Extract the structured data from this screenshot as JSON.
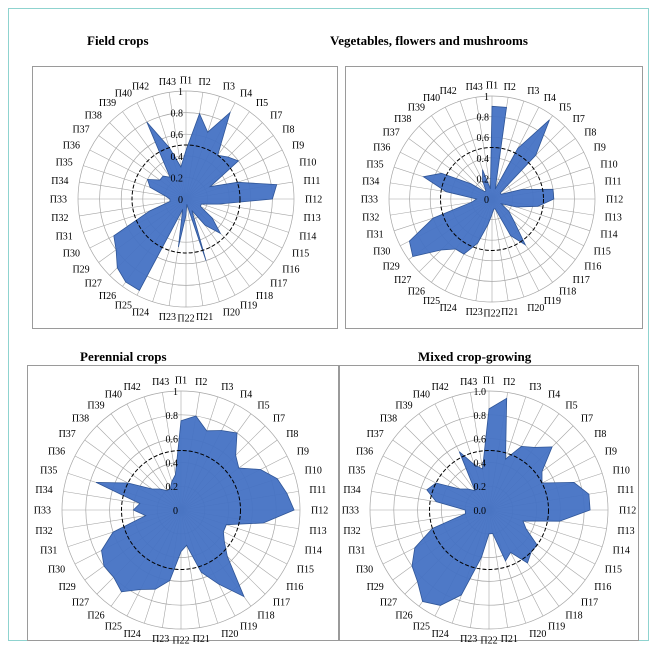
{
  "chart_data": [
    {
      "type": "radar",
      "title": "Field crops",
      "categories": [
        "П1",
        "П2",
        "П3",
        "П4",
        "П5",
        "П7",
        "П8",
        "П9",
        "П10",
        "П11",
        "П12",
        "П13",
        "П14",
        "П15",
        "П16",
        "П17",
        "П18",
        "П19",
        "П20",
        "П21",
        "П22",
        "П23",
        "П24",
        "П25",
        "П26",
        "П27",
        "П29",
        "П30",
        "П31",
        "П32",
        "П33",
        "П34",
        "П35",
        "П36",
        "П37",
        "П38",
        "П39",
        "П40",
        "П42",
        "П43"
      ],
      "radial_ticks": [
        "0",
        "0.2",
        "0.4",
        "0.6",
        "0.8",
        "1"
      ],
      "rlim": [
        0,
        1
      ],
      "threshold": 0.5,
      "values": [
        0.45,
        0.8,
        0.65,
        0.9,
        0.5,
        0.55,
        0.6,
        0.25,
        0.5,
        0.85,
        0.8,
        0.3,
        0.15,
        0.15,
        0.3,
        0.45,
        0.3,
        0.12,
        0.6,
        0.05,
        0.15,
        0.45,
        0.1,
        0.95,
        0.95,
        0.9,
        0.8,
        0.75,
        0.35,
        0.15,
        0.15,
        0.2,
        0.35,
        0.4,
        0.3,
        0.3,
        0.25,
        0.8,
        0.5,
        0.3
      ]
    },
    {
      "type": "radar",
      "title": "Vegetables, flowers and mushrooms",
      "categories": [
        "П1",
        "П2",
        "П3",
        "П4",
        "П5",
        "П7",
        "П8",
        "П9",
        "П10",
        "П11",
        "П12",
        "П13",
        "П14",
        "П15",
        "П16",
        "П17",
        "П18",
        "П19",
        "П20",
        "П21",
        "П22",
        "П23",
        "П24",
        "П25",
        "П26",
        "П27",
        "П29",
        "П30",
        "П31",
        "П32",
        "П33",
        "П34",
        "П35",
        "П36",
        "П37",
        "П38",
        "П39",
        "П40",
        "П42",
        "П43"
      ],
      "radial_ticks": [
        "0",
        "0.2",
        "0.4",
        "0.6",
        "0.8",
        "1"
      ],
      "rlim": [
        0,
        1
      ],
      "threshold": 0.5,
      "values": [
        0.9,
        0.9,
        0.1,
        0.55,
        0.95,
        0.6,
        0.1,
        0.1,
        0.3,
        0.6,
        0.6,
        0.45,
        0.25,
        0.1,
        0.2,
        0.3,
        0.55,
        0.4,
        0.1,
        0.1,
        0.15,
        0.25,
        0.45,
        0.6,
        0.6,
        0.7,
        0.95,
        0.9,
        0.6,
        0.2,
        0.15,
        0.45,
        0.7,
        0.55,
        0.25,
        0.1,
        0.1,
        0.2,
        0.3,
        0.1
      ]
    },
    {
      "type": "radar",
      "title": "Perennial crops",
      "categories": [
        "П1",
        "П2",
        "П3",
        "П4",
        "П5",
        "П7",
        "П8",
        "П9",
        "П10",
        "П11",
        "П12",
        "П13",
        "П14",
        "П15",
        "П16",
        "П17",
        "П18",
        "П19",
        "П20",
        "П21",
        "П22",
        "П23",
        "П24",
        "П25",
        "П26",
        "П27",
        "П29",
        "П30",
        "П31",
        "П32",
        "П33",
        "П34",
        "П35",
        "П36",
        "П37",
        "П38",
        "П39",
        "П40",
        "П42",
        "П43"
      ],
      "radial_ticks": [
        "0",
        "0.2",
        "0.4",
        "0.6",
        "0.8",
        "1"
      ],
      "rlim": [
        0,
        1
      ],
      "threshold": 0.5,
      "values": [
        0.75,
        0.8,
        0.7,
        0.75,
        0.8,
        0.65,
        0.6,
        0.75,
        0.85,
        0.9,
        0.95,
        0.7,
        0.4,
        0.4,
        0.45,
        0.55,
        0.9,
        0.7,
        0.55,
        0.3,
        0.35,
        0.6,
        0.7,
        0.75,
        0.85,
        0.8,
        0.8,
        0.75,
        0.6,
        0.3,
        0.4,
        0.35,
        0.75,
        0.5,
        0.3,
        0.25,
        0.2,
        0.2,
        0.25,
        0.3
      ]
    },
    {
      "type": "radar",
      "title": "Mixed crop-growing",
      "categories": [
        "П1",
        "П2",
        "П3",
        "П4",
        "П5",
        "П7",
        "П8",
        "П9",
        "П10",
        "П11",
        "П12",
        "П13",
        "П14",
        "П15",
        "П16",
        "П17",
        "П18",
        "П19",
        "П20",
        "П21",
        "П22",
        "П23",
        "П24",
        "П25",
        "П26",
        "П27",
        "П29",
        "П30",
        "П31",
        "П32",
        "П33",
        "П34",
        "П35",
        "П36",
        "П37",
        "П38",
        "П39",
        "П40",
        "П42",
        "П43"
      ],
      "radial_ticks": [
        "0.0",
        "0.2",
        "0.4",
        "0.6",
        "0.8",
        "1.0"
      ],
      "rlim": [
        0,
        1
      ],
      "threshold": 0.5,
      "values": [
        0.85,
        0.95,
        0.45,
        0.6,
        0.65,
        0.75,
        0.55,
        0.5,
        0.75,
        0.85,
        0.85,
        0.6,
        0.3,
        0.35,
        0.5,
        0.5,
        0.55,
        0.4,
        0.45,
        0.2,
        0.2,
        0.4,
        0.75,
        0.9,
        0.95,
        0.85,
        0.8,
        0.7,
        0.5,
        0.2,
        0.2,
        0.45,
        0.55,
        0.5,
        0.3,
        0.25,
        0.2,
        0.55,
        0.4,
        0.35
      ]
    }
  ],
  "colors": {
    "fill": "#4472c4",
    "stroke": "#2f5597",
    "grid": "#a6a6a6",
    "threshold": "#000000"
  }
}
